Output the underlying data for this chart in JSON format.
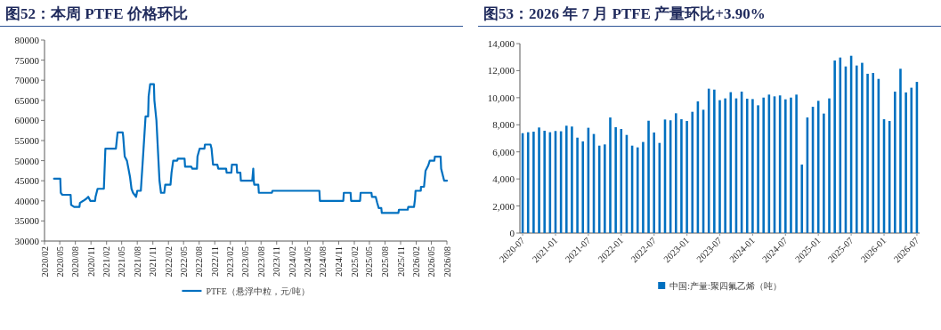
{
  "chart_data": [
    {
      "type": "line",
      "title": "图52：本周 PTFE 价格环比",
      "legend": "bottom",
      "grid": false,
      "x": [
        "2020-03-28",
        "2020-05-04",
        "2020-05-07",
        "2020-05-16",
        "2020-07-04",
        "2020-07-07",
        "2020-07-25",
        "2020-08-25",
        "2020-08-28",
        "2020-09-16",
        "2020-10-04",
        "2020-10-16",
        "2020-10-28",
        "2020-11-25",
        "2020-11-28",
        "2020-12-10",
        "2021-01-16",
        "2021-01-25",
        "2021-03-28",
        "2021-04-07",
        "2021-05-07",
        "2021-05-10",
        "2021-05-19",
        "2021-06-01",
        "2021-06-10",
        "2021-06-19",
        "2021-06-28",
        "2021-07-07",
        "2021-07-25",
        "2021-08-01",
        "2021-08-22",
        "2021-09-01",
        "2021-09-19",
        "2021-10-04",
        "2021-10-07",
        "2021-10-16",
        "2021-11-07",
        "2021-11-10",
        "2021-11-22",
        "2021-12-04",
        "2021-12-10",
        "2021-12-19",
        "2022-01-07",
        "2022-01-13",
        "2022-02-13",
        "2022-02-19",
        "2022-03-01",
        "2022-03-25",
        "2022-03-28",
        "2022-05-07",
        "2022-05-10",
        "2022-06-16",
        "2022-06-22",
        "2022-07-19",
        "2022-07-22",
        "2022-08-04",
        "2022-09-01",
        "2022-09-04",
        "2022-10-07",
        "2022-10-13",
        "2022-10-22",
        "2022-11-16",
        "2022-11-22",
        "2023-01-07",
        "2023-01-10",
        "2023-02-07",
        "2023-02-10",
        "2023-03-10",
        "2023-03-13",
        "2023-04-01",
        "2023-04-04",
        "2023-06-10",
        "2023-06-16",
        "2023-06-19",
        "2023-06-22",
        "2023-07-16",
        "2023-07-19",
        "2023-10-04",
        "2023-10-07",
        "2024-07-10",
        "2024-07-13",
        "2024-11-28",
        "2024-12-01",
        "2025-01-10",
        "2025-01-13",
        "2025-03-07",
        "2025-03-10",
        "2025-05-13",
        "2025-05-16",
        "2025-06-07",
        "2025-06-16",
        "2025-06-25",
        "2025-07-10",
        "2025-07-13",
        "2025-10-19",
        "2025-10-22",
        "2025-12-13",
        "2025-12-16",
        "2026-01-19",
        "2026-01-25",
        "2026-01-28",
        "2026-02-28",
        "2026-03-01",
        "2026-03-19",
        "2026-03-28",
        "2026-04-13",
        "2026-04-22",
        "2026-05-19",
        "2026-05-22",
        "2026-06-25",
        "2026-06-28",
        "2026-07-10",
        "2026-07-16",
        "2026-08-01"
      ],
      "series": [
        {
          "name": "PTFE（悬浮中粒，元/吨）",
          "color": "#0070c0",
          "values": [
            45500,
            45500,
            42000,
            41500,
            41500,
            39000,
            38500,
            38500,
            39500,
            40000,
            40500,
            41000,
            40000,
            40000,
            41000,
            43000,
            43000,
            53000,
            53000,
            57000,
            57000,
            56000,
            51000,
            50000,
            48000,
            46000,
            43000,
            42000,
            41000,
            42500,
            42500,
            49000,
            61000,
            61000,
            66000,
            69000,
            69000,
            65000,
            60000,
            50000,
            45000,
            42000,
            42000,
            44000,
            44000,
            47000,
            50000,
            50000,
            50500,
            50500,
            48500,
            48500,
            48000,
            48000,
            51000,
            53000,
            53000,
            54000,
            54000,
            53000,
            49000,
            49000,
            48000,
            48000,
            47000,
            47000,
            49000,
            49000,
            47000,
            47000,
            45000,
            45000,
            48000,
            45000,
            44000,
            44000,
            42000,
            42000,
            42500,
            42500,
            40000,
            40000,
            42000,
            42000,
            40000,
            40000,
            42000,
            42000,
            41000,
            41000,
            39500,
            38200,
            38200,
            37000,
            37000,
            37800,
            37800,
            38500,
            38500,
            40500,
            42500,
            42500,
            43500,
            43500,
            47500,
            48800,
            50000,
            50000,
            51000,
            51000,
            48000,
            46000,
            45000,
            45000
          ]
        }
      ],
      "xlim": [
        "2020-02",
        "2026-08"
      ],
      "xticks": [
        {
          "value": "2020-02",
          "label": "2020/02"
        },
        {
          "value": "2020-05",
          "label": "2020/05"
        },
        {
          "value": "2020-08",
          "label": "2020/08"
        },
        {
          "value": "2020-11",
          "label": "2020/11"
        },
        {
          "value": "2021-02",
          "label": "2021/02"
        },
        {
          "value": "2021-05",
          "label": "2021/05"
        },
        {
          "value": "2021-08",
          "label": "2021/08"
        },
        {
          "value": "2021-11",
          "label": "2021/11"
        },
        {
          "value": "2022-02",
          "label": "2022/02"
        },
        {
          "value": "2022-05",
          "label": "2022/05"
        },
        {
          "value": "2022-08",
          "label": "2022/08"
        },
        {
          "value": "2022-11",
          "label": "2022/11"
        },
        {
          "value": "2023-02",
          "label": "2023/02"
        },
        {
          "value": "2023-05",
          "label": "2023/05"
        },
        {
          "value": "2023-08",
          "label": "2023/08"
        },
        {
          "value": "2023-11",
          "label": "2023/11"
        },
        {
          "value": "2024-02",
          "label": "2024/02"
        },
        {
          "value": "2024-05",
          "label": "2024/05"
        },
        {
          "value": "2024-08",
          "label": "2024/08"
        },
        {
          "value": "2024-11",
          "label": "2024/11"
        },
        {
          "value": "2025-02",
          "label": "2025/02"
        },
        {
          "value": "2025-05",
          "label": "2025/05"
        },
        {
          "value": "2025-08",
          "label": "2025/08"
        },
        {
          "value": "2025-11",
          "label": "2025/11"
        },
        {
          "value": "2026-02",
          "label": "2026/02"
        },
        {
          "value": "2026-05",
          "label": "2026/05"
        },
        {
          "value": "2026-08",
          "label": "2026/08"
        }
      ],
      "ylim": [
        30000,
        80000
      ],
      "yticks": [
        30000,
        35000,
        40000,
        45000,
        50000,
        55000,
        60000,
        65000,
        70000,
        75000,
        80000
      ]
    },
    {
      "type": "bar",
      "title": "图53：2026 年 7 月 PTFE 产量环比+3.90%",
      "legend": "bottom",
      "grid": false,
      "categories": [
        "2020-07",
        null,
        null,
        null,
        null,
        null,
        "2021-01",
        null,
        null,
        null,
        null,
        null,
        "2021-07",
        null,
        null,
        null,
        null,
        null,
        "2022-01",
        null,
        null,
        null,
        null,
        null,
        "2022-07",
        null,
        null,
        null,
        null,
        null,
        "2023-01",
        null,
        null,
        null,
        null,
        null,
        "2023-07",
        null,
        null,
        null,
        null,
        null,
        "2024-01",
        null,
        null,
        null,
        null,
        null,
        "2024-07",
        null,
        null,
        null,
        null,
        null,
        "2025-01",
        null,
        null,
        null,
        null,
        null,
        "2025-07",
        null,
        null,
        null,
        null,
        null,
        "2026-01",
        null,
        null,
        null,
        null,
        null,
        "2026-07"
      ],
      "series": [
        {
          "name": "中国:产量:聚四氟乙烯（吨）",
          "color": "#0070c0",
          "values": [
            7380,
            7450,
            7490,
            7800,
            7560,
            7450,
            7540,
            7520,
            7930,
            7870,
            7050,
            6770,
            7780,
            7320,
            6460,
            6550,
            8540,
            7820,
            7690,
            7250,
            6460,
            6330,
            6730,
            8300,
            7430,
            6660,
            8390,
            8330,
            8850,
            8410,
            8280,
            8960,
            9730,
            9110,
            10670,
            10600,
            9820,
            9950,
            10410,
            9950,
            10450,
            9930,
            9900,
            9440,
            10010,
            10230,
            10100,
            10170,
            9880,
            10010,
            10230,
            5060,
            8540,
            9330,
            9770,
            8830,
            9950,
            12750,
            12970,
            12310,
            13100,
            12380,
            12580,
            11770,
            11830,
            11390,
            8410,
            8280,
            10450,
            12140,
            10390,
            10740,
            11170
          ]
        }
      ],
      "ylim": [
        0,
        14000
      ],
      "yticks": [
        0,
        {
          "value": 2000,
          "label": "2,000"
        },
        {
          "value": 4000,
          "label": "4,000"
        },
        {
          "value": 6000,
          "label": "6,000"
        },
        {
          "value": 8000,
          "label": "8,000"
        },
        {
          "value": 10000,
          "label": "10,000"
        },
        {
          "value": 12000,
          "label": "12,000"
        },
        {
          "value": 14000,
          "label": "14,000"
        }
      ]
    }
  ]
}
